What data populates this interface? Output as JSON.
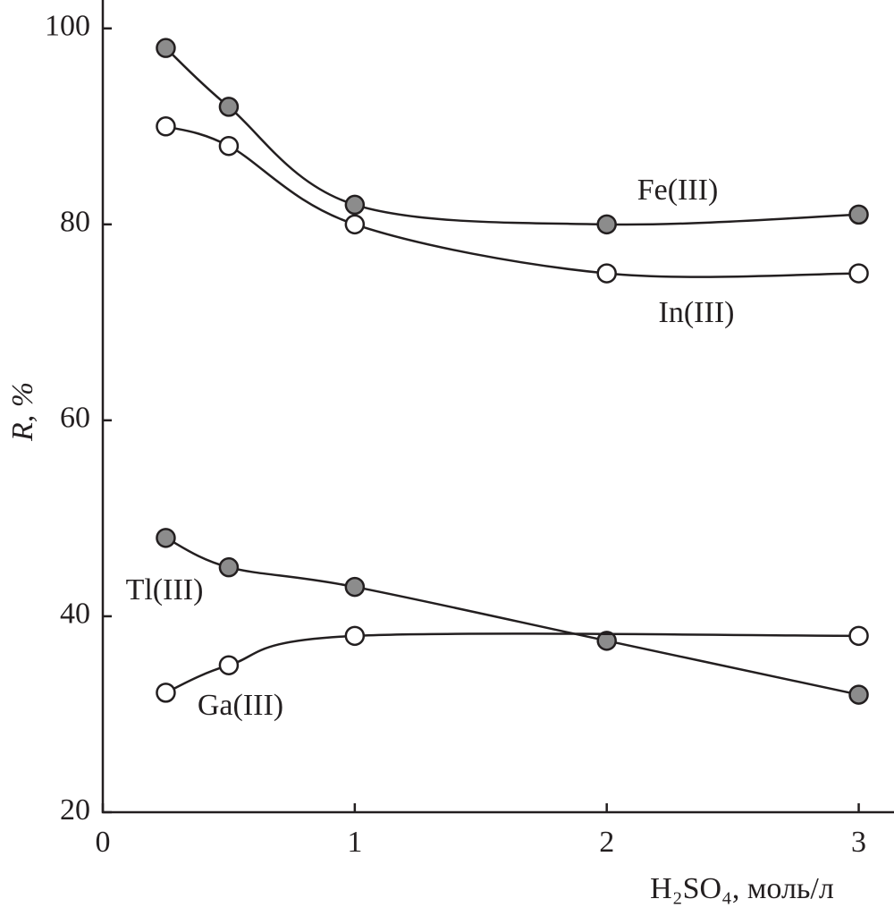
{
  "chart_data": {
    "type": "line",
    "x_label": "H₂SO₄, моль/л",
    "y_label": "R, %",
    "xlim": [
      0,
      3.14
    ],
    "ylim": [
      20,
      102.9
    ],
    "xticks": [
      0,
      1,
      2,
      3
    ],
    "yticks": [
      20,
      40,
      60,
      80,
      100
    ],
    "series": [
      {
        "name": "Fe(III)",
        "color": "#231f20",
        "marker_fill": "#8c8c8c",
        "x": [
          0.25,
          0.5,
          1,
          2,
          3
        ],
        "values": [
          98,
          92,
          82,
          80,
          81
        ]
      },
      {
        "name": "In(III)",
        "color": "#231f20",
        "marker_fill": "#ffffff",
        "x": [
          0.25,
          0.5,
          1,
          2,
          3
        ],
        "values": [
          90,
          88,
          80,
          75,
          75
        ]
      },
      {
        "name": "Tl(III)",
        "color": "#231f20",
        "marker_fill": "#8c8c8c",
        "x": [
          0.25,
          0.5,
          1,
          2,
          3
        ],
        "values": [
          48,
          45,
          43,
          37.5,
          32
        ]
      },
      {
        "name": "Ga(III)",
        "color": "#231f20",
        "marker_fill": "#ffffff",
        "x": [
          0.25,
          0.5,
          1,
          3
        ],
        "values": [
          32.2,
          35,
          38,
          38
        ]
      }
    ]
  }
}
